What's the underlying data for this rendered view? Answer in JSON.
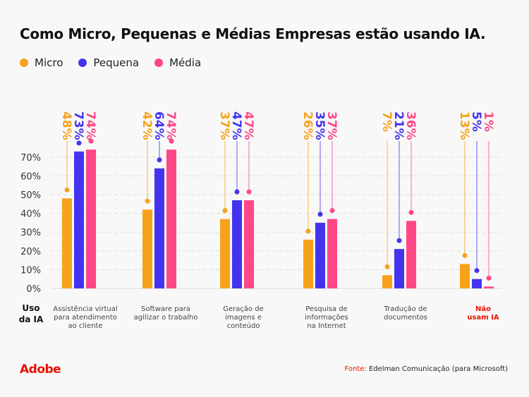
{
  "chart_data": {
    "type": "bar",
    "title": "Como Micro, Pequenas e Médias Empresas estão usando IA.",
    "xlabel": "Uso da IA",
    "ylim": [
      0,
      70
    ],
    "yticks": [
      "0%",
      "10%",
      "20%",
      "30%",
      "40%",
      "50%",
      "60%",
      "70%"
    ],
    "grid": true,
    "legend_position": "top-left",
    "categories": [
      "Assistência virtual para atendimento ao cliente",
      "Software para agilizar o trabalho",
      "Geração de imagens e conteúdo",
      "Pesquisa de informações na Internet",
      "Tradução de documentos",
      "Não usam IA"
    ],
    "category_lines": [
      [
        "Assistência virtual",
        "para atendimento",
        "ao cliente"
      ],
      [
        "Software para",
        "agilizar o trabalho"
      ],
      [
        "Geração de",
        "imagens e",
        "conteúdo"
      ],
      [
        "Pesquisa de",
        "informações",
        "na Internet"
      ],
      [
        "Tradução de",
        "documentos"
      ],
      [
        "Não",
        "usam IA"
      ]
    ],
    "series": [
      {
        "name": "Micro",
        "color": "#F7A21B",
        "values": [
          48,
          42,
          37,
          26,
          7,
          13
        ]
      },
      {
        "name": "Pequena",
        "color": "#4433EE",
        "values": [
          73,
          64,
          47,
          35,
          21,
          5
        ]
      },
      {
        "name": "Média",
        "color": "#FF4785",
        "values": [
          74,
          74,
          47,
          37,
          36,
          1
        ]
      }
    ],
    "highlight_color": "#EB1000"
  },
  "footer": {
    "logo": "Adobe",
    "source_label": "Fonte:",
    "source": "Edelman Comunicação (para Microsoft)"
  }
}
